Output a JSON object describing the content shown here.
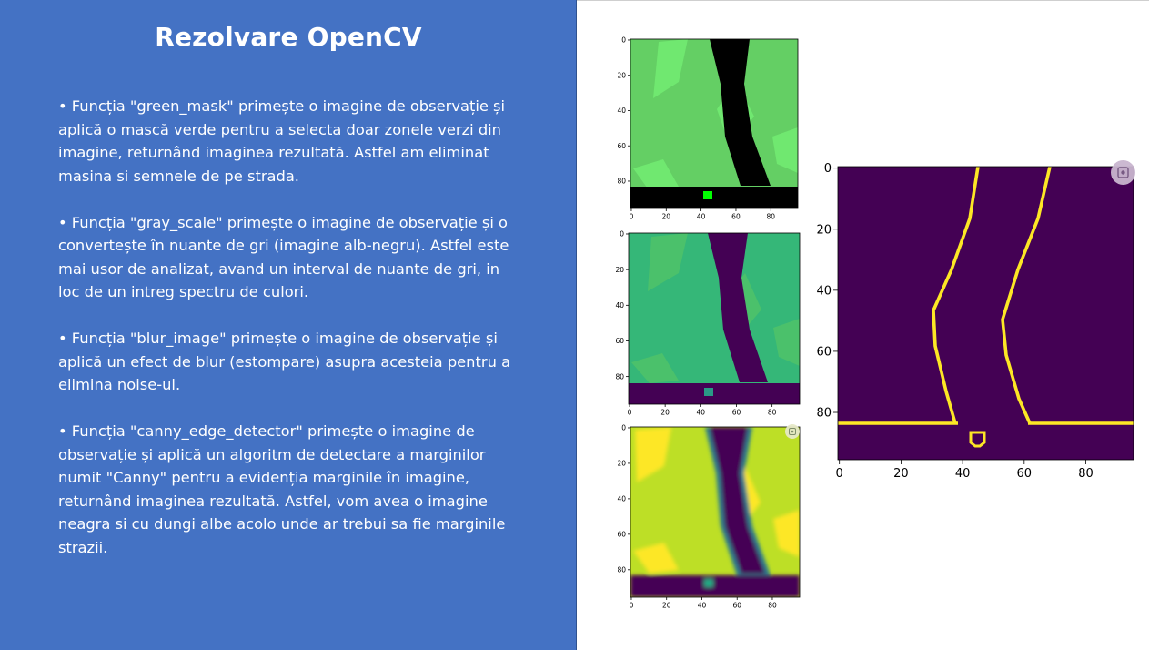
{
  "slide": {
    "title": "Rezolvare OpenCV",
    "bullets": [
      "• Funcția \"green_mask\" primește o imagine de observație și aplică o mască verde pentru a selecta doar zonele verzi din imagine, returnând imaginea rezultată. Astfel am eliminat masina si semnele de pe strada.",
      "• Funcția \"gray_scale\" primește o imagine de observație și o convertește în nuante de gri (imagine alb-negru). Astfel este mai usor de analizat, avand un interval de nuante de gri, in loc de un intreg spectru de culori.",
      "• Funcția \"blur_image\" primește o imagine de observație și aplică un efect de blur (estompare) asupra acesteia pentru a elimina noise-ul.",
      "• Funcția \"canny_edge_detector\" primește o imagine de observație și aplică un algoritm de detectare a marginilor numit \"Canny\" pentru a evidenția marginile în imagine, returnând imaginea rezultată. Astfel, vom avea o imagine neagra si cu dungi albe acolo unde ar trebui sa fie marginile strazii."
    ]
  },
  "plots": {
    "small_ticks": [
      "0",
      "20",
      "40",
      "60",
      "80"
    ],
    "large_ticks": [
      "0",
      "20",
      "40",
      "60",
      "80"
    ],
    "green_mask": {
      "colors": {
        "bg": "#64cf64",
        "patch": "#70e870",
        "road": "#000000",
        "car": "#00ff00"
      }
    },
    "gray_scale": {
      "colors": {
        "bg": "#35b778",
        "patch": "#4bc16b",
        "road": "#440154",
        "car": "#2a9a86"
      }
    },
    "blurred": {
      "colors": {
        "bg": "#bddf26",
        "patch": "#fde725",
        "road": "#440154",
        "car": "#22a884",
        "edge": "#2a788e"
      }
    },
    "canny": {
      "colors": {
        "bg": "#440154",
        "edge": "#fde725"
      }
    }
  },
  "icons": [
    "lens-icon"
  ]
}
